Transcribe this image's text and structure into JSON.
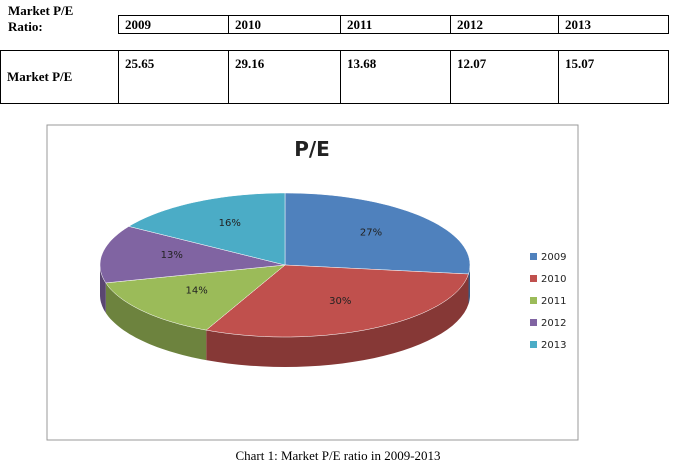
{
  "table": {
    "header": [
      "Market P/E",
      "Ratio:"
    ],
    "columns": [
      "2009",
      "2010",
      "2011",
      "2012",
      "2013"
    ],
    "rows": [
      [
        "Market P/E",
        "25.65",
        "29.16",
        "13.68",
        "12.07",
        "15.07"
      ]
    ]
  },
  "chart_data": {
    "type": "pie",
    "title": "P/E",
    "categories": [
      "2009",
      "2010",
      "2011",
      "2012",
      "2013"
    ],
    "values": [
      27,
      30,
      14,
      13,
      16
    ],
    "value_labels": [
      "27%",
      "30%",
      "14%",
      "13%",
      "16%"
    ],
    "colors": [
      "#4f81bd",
      "#c0504d",
      "#9bbb59",
      "#8064a2",
      "#4bacc6"
    ],
    "legend": "right"
  },
  "caption": "Chart 1: Market P/E ratio in 2009-2013"
}
